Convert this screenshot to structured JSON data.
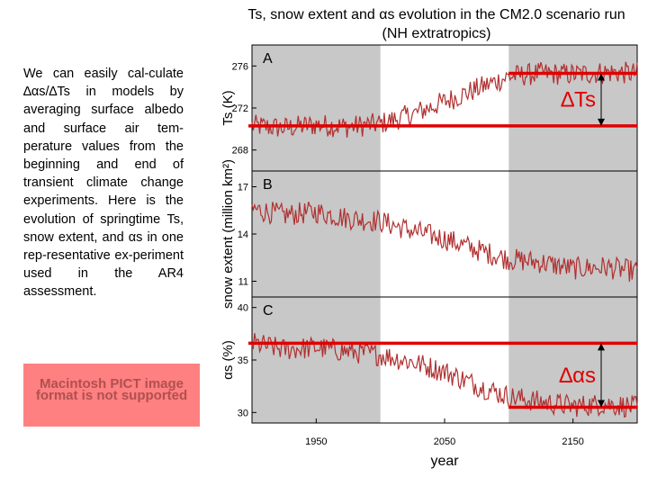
{
  "text": {
    "paragraph": "We can easily cal-culate ∆αs/∆Ts in models by averaging surface albedo and surface air tem-perature values from the beginning and end of transient climate change experiments. Here is the evolution of springtime Ts, snow extent, and αs in one rep-resentative ex-periment used in the AR4 assessment.",
    "pict_placeholder": "Macintosh PICT image format is not supported"
  },
  "chart_data": {
    "type": "line",
    "title": "Ts, snow extent and αs evolution in the CM2.0 scenario run (NH extratropics)",
    "xlabel": "year",
    "x_ticks": [
      "1950",
      "2050",
      "2150"
    ],
    "xlim": [
      1900,
      2200
    ],
    "shaded_periods": [
      [
        1900,
        2000
      ],
      [
        2100,
        2200
      ]
    ],
    "panels": [
      {
        "label": "A",
        "ylabel": "Ts (K)",
        "ylim": [
          266,
          278
        ],
        "y_ticks": [
          "276",
          "272",
          "268"
        ],
        "series": [
          {
            "name": "Ts",
            "x": [
              1900,
              1925,
              1950,
              1975,
              2000,
              2025,
              2050,
              2075,
              2100,
              2125,
              2150,
              2175,
              2200
            ],
            "values": [
              270.3,
              270.1,
              270.4,
              270.2,
              270.5,
              271.4,
              272.6,
              273.8,
              275.0,
              275.3,
              275.2,
              275.4,
              275.3
            ]
          }
        ],
        "reference_lines": [
          270.3,
          275.3
        ],
        "annotation": "∆Ts"
      },
      {
        "label": "B",
        "ylabel": "snow extent (million km²)",
        "ylim": [
          10,
          18
        ],
        "y_ticks": [
          "17",
          "14",
          "11"
        ],
        "series": [
          {
            "name": "snow extent",
            "x": [
              1900,
              1925,
              1950,
              1975,
              2000,
              2025,
              2050,
              2075,
              2100,
              2125,
              2150,
              2175,
              2200
            ],
            "values": [
              15.6,
              15.2,
              15.4,
              15.0,
              14.8,
              14.2,
              13.7,
              13.0,
              12.4,
              12.2,
              11.8,
              11.9,
              11.6
            ]
          }
        ]
      },
      {
        "label": "C",
        "ylabel": "αs (%)",
        "ylim": [
          29,
          41
        ],
        "y_ticks": [
          "40",
          "35",
          "30"
        ],
        "series": [
          {
            "name": "αs",
            "x": [
              1900,
              1925,
              1950,
              1975,
              2000,
              2025,
              2050,
              2075,
              2100,
              2125,
              2150,
              2175,
              2200
            ],
            "values": [
              36.6,
              36.0,
              36.2,
              35.8,
              35.5,
              34.8,
              33.9,
              32.6,
              31.5,
              31.0,
              30.6,
              30.8,
              30.5
            ]
          }
        ],
        "reference_lines": [
          36.6,
          30.5
        ],
        "annotation": "∆αs"
      }
    ]
  }
}
